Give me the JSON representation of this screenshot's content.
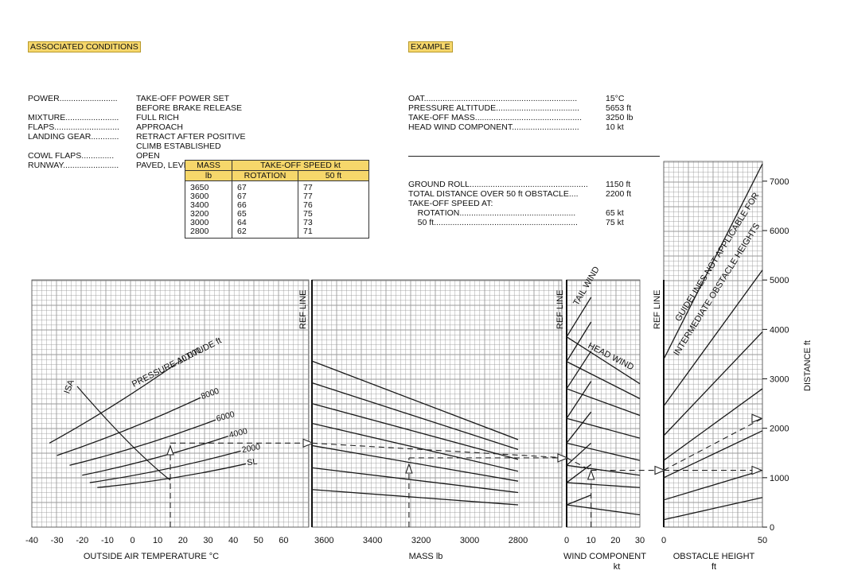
{
  "associated": {
    "title": "ASSOCIATED CONDITIONS",
    "rows": [
      {
        "k": "POWER.........................",
        "v": "TAKE-OFF POWER SET"
      },
      {
        "k": "",
        "v": "BEFORE BRAKE RELEASE"
      },
      {
        "k": "MIXTURE.......................",
        "v": "FULL RICH"
      },
      {
        "k": "FLAPS............................",
        "v": "APPROACH"
      },
      {
        "k": "LANDING GEAR............",
        "v": "RETRACT AFTER POSITIVE"
      },
      {
        "k": "",
        "v": "CLIMB ESTABLISHED"
      },
      {
        "k": "COWL FLAPS..............",
        "v": "OPEN"
      },
      {
        "k": "RUNWAY........................",
        "v": "PAVED, LEVEL, DRY SURFACE"
      }
    ]
  },
  "example": {
    "title": "EXAMPLE",
    "rows1": [
      {
        "k": "OAT..................................................................",
        "v": "15°C"
      },
      {
        "k": "PRESSURE ALTITUDE....................................",
        "v": "5653 ft"
      },
      {
        "k": "TAKE-OFF MASS..............................................",
        "v": "3250 lb"
      },
      {
        "k": "HEAD WIND COMPONENT.............................",
        "v": "10 kt"
      }
    ],
    "rows2": [
      {
        "k": "GROUND ROLL...................................................",
        "v": "1150 ft"
      },
      {
        "k": "TOTAL DISTANCE OVER 50 ft OBSTACLE....",
        "v": "2200 ft"
      },
      {
        "k": "TAKE-OFF SPEED AT:",
        "v": ""
      },
      {
        "k": "    ROTATION..................................................",
        "v": "65 kt"
      },
      {
        "k": "    50 ft..............................................................",
        "v": "75 kt"
      }
    ]
  },
  "speed_table": {
    "h_mass": "MASS",
    "h_unit": "lb",
    "h_speed": "TAKE-OFF SPEED kt",
    "h_rot": "ROTATION",
    "h_50": "50 ft",
    "rows": [
      {
        "mass": "3650",
        "rot": "67",
        "f50": "77"
      },
      {
        "mass": "3600",
        "rot": "67",
        "f50": "77"
      },
      {
        "mass": "3400",
        "rot": "66",
        "f50": "76"
      },
      {
        "mass": "3200",
        "rot": "65",
        "f50": "75"
      },
      {
        "mass": "3000",
        "rot": "64",
        "f50": "73"
      },
      {
        "mass": "2800",
        "rot": "62",
        "f50": "71"
      }
    ]
  },
  "chart_data": {
    "type": "line",
    "colors": {
      "grid": "#9a9a9a",
      "line": "#1a1a1a",
      "highlight": "#f6d76b"
    },
    "panels": [
      {
        "name": "oat",
        "xlabel": "OUTSIDE AIR TEMPERATURE °C",
        "xlim": [
          -40,
          70
        ],
        "ticks": [
          -40,
          -30,
          -20,
          -10,
          0,
          10,
          20,
          30,
          40,
          50,
          60
        ],
        "curve_title": "PRESSURE ALTITUDE  ft",
        "isa_label": "ISA",
        "series": [
          {
            "name": "10,000",
            "x": [
              -33,
              18
            ],
            "y": [
              1700,
              3330
            ]
          },
          {
            "name": "8000",
            "x": [
              -30,
              27
            ],
            "y": [
              1450,
              2620
            ]
          },
          {
            "name": "6000",
            "x": [
              -25,
              33
            ],
            "y": [
              1250,
              2170
            ]
          },
          {
            "name": "4000",
            "x": [
              -20,
              38
            ],
            "y": [
              1050,
              1840
            ]
          },
          {
            "name": "2000",
            "x": [
              -17,
              43
            ],
            "y": [
              900,
              1540
            ]
          },
          {
            "name": "SL",
            "x": [
              -14,
              45
            ],
            "y": [
              800,
              1280
            ]
          }
        ],
        "isa": {
          "x": [
            -22,
            0,
            15
          ],
          "y": [
            2850,
            1550,
            950
          ]
        }
      },
      {
        "name": "mass",
        "xlabel": "MASS  lb",
        "xlim": [
          3650,
          2800
        ],
        "ticks": [
          3600,
          3400,
          3200,
          3000,
          2800
        ],
        "ref_label": "REF LINE",
        "guides": [
          {
            "y0": 3360,
            "y1": 1770
          },
          {
            "y0": 2920,
            "y1": 1570
          },
          {
            "y0": 2500,
            "y1": 1370
          },
          {
            "y0": 2100,
            "y1": 1130
          },
          {
            "y0": 1650,
            "y1": 930
          },
          {
            "y0": 1200,
            "y1": 700
          },
          {
            "y0": 760,
            "y1": 450
          }
        ]
      },
      {
        "name": "wind",
        "xlabel": "WIND COMPONENT",
        "xunit": "kt",
        "xlim": [
          0,
          30
        ],
        "ticks": [
          0,
          10,
          20,
          30
        ],
        "ref_label": "REF LINE",
        "tail_label": "TAIL WIND",
        "head_label": "HEAD WIND",
        "tail": [
          {
            "x1": 10,
            "y0": 3850,
            "y1": 4650
          },
          {
            "x1": 10,
            "y0": 3350,
            "y1": 4150
          },
          {
            "x1": 10,
            "y0": 2800,
            "y1": 3560
          },
          {
            "x1": 10,
            "y0": 2200,
            "y1": 2950
          },
          {
            "x1": 10,
            "y0": 1700,
            "y1": 2330
          },
          {
            "x1": 10,
            "y0": 1250,
            "y1": 1700
          },
          {
            "x1": 10,
            "y0": 900,
            "y1": 1270
          },
          {
            "x1": 10,
            "y0": 450,
            "y1": 650
          }
        ],
        "head": [
          {
            "y0": 3850,
            "y1": 2900
          },
          {
            "y0": 3350,
            "y1": 2600
          },
          {
            "y0": 2800,
            "y1": 2260
          },
          {
            "y0": 2200,
            "y1": 1800
          },
          {
            "y0": 1700,
            "y1": 1350
          },
          {
            "y0": 1250,
            "y1": 1050
          },
          {
            "y0": 900,
            "y1": 800
          },
          {
            "y0": 450,
            "y1": 250
          }
        ]
      },
      {
        "name": "obstacle",
        "xlabel": "OBSTACLE HEIGHT",
        "xunit": "ft",
        "xlim": [
          0,
          50
        ],
        "ticks": [
          0,
          50
        ],
        "ref_label": "REF LINE",
        "note1": "GUIDELINES NOT APPLICABLE FOR",
        "note2": "INTERMEDIATE OBSTACLE HEIGHTS",
        "guides": [
          {
            "y0": 3400,
            "y1": 7350
          },
          {
            "y0": 2450,
            "y1": 5200
          },
          {
            "y0": 1850,
            "y1": 3950
          },
          {
            "y0": 1350,
            "y1": 2800
          },
          {
            "y0": 1000,
            "y1": 1950
          },
          {
            "y0": 550,
            "y1": 1150
          },
          {
            "y0": 150,
            "y1": 600
          }
        ]
      }
    ],
    "yaxis": {
      "label": "DISTANCE  ft",
      "ylim": [
        0,
        7400
      ],
      "ticks": [
        0,
        1000,
        2000,
        3000,
        4000,
        5000,
        6000,
        7000
      ]
    },
    "example_path": {
      "oat": 15,
      "mass": 3250,
      "wind": 10,
      "ground_roll": 1150,
      "total_distance": 2200
    }
  }
}
